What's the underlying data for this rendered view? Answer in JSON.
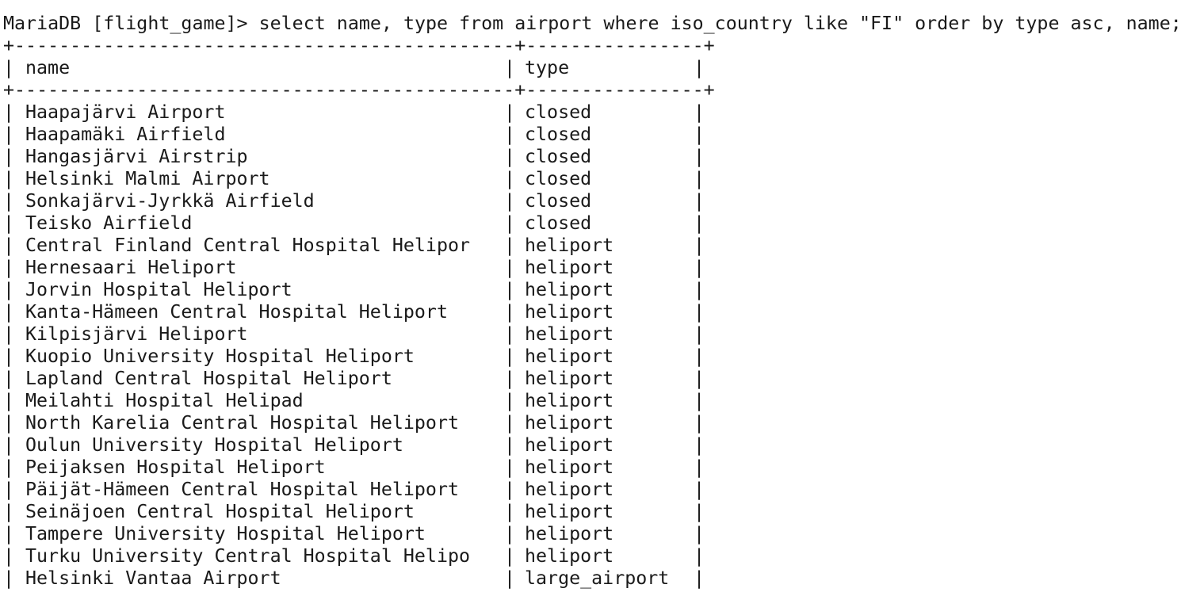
{
  "prompt": "MariaDB [flight_game]>",
  "query": "select name, type from airport where iso_country like \"FI\" order by type asc, name;",
  "border_line": "+---------------------------------------------+----------------+",
  "columns": [
    "name",
    "type"
  ],
  "rows": [
    {
      "name": "Haapajärvi Airport",
      "type": "closed"
    },
    {
      "name": "Haapamäki Airfield",
      "type": "closed"
    },
    {
      "name": "Hangasjärvi Airstrip",
      "type": "closed"
    },
    {
      "name": "Helsinki Malmi Airport",
      "type": "closed"
    },
    {
      "name": "Sonkajärvi-Jyrkkä Airfield",
      "type": "closed"
    },
    {
      "name": "Teisko Airfield",
      "type": "closed"
    },
    {
      "name": "Central Finland Central Hospital Helipor",
      "type": "heliport"
    },
    {
      "name": "Hernesaari Heliport",
      "type": "heliport"
    },
    {
      "name": "Jorvin Hospital Heliport",
      "type": "heliport"
    },
    {
      "name": "Kanta-Hämeen Central Hospital Heliport",
      "type": "heliport"
    },
    {
      "name": "Kilpisjärvi Heliport",
      "type": "heliport"
    },
    {
      "name": "Kuopio University Hospital Heliport",
      "type": "heliport"
    },
    {
      "name": "Lapland Central Hospital Heliport",
      "type": "heliport"
    },
    {
      "name": "Meilahti Hospital Helipad",
      "type": "heliport"
    },
    {
      "name": "North Karelia Central Hospital Heliport",
      "type": "heliport"
    },
    {
      "name": "Oulun University Hospital Heliport",
      "type": "heliport"
    },
    {
      "name": "Peijaksen Hospital Heliport",
      "type": "heliport"
    },
    {
      "name": "Päijät-Hämeen Central Hospital Heliport",
      "type": "heliport"
    },
    {
      "name": "Seinäjoen Central Hospital Heliport",
      "type": "heliport"
    },
    {
      "name": "Tampere University Hospital Heliport",
      "type": "heliport"
    },
    {
      "name": "Turku University Central Hospital Helipo",
      "type": "heliport"
    },
    {
      "name": "Helsinki Vantaa Airport",
      "type": "large_airport"
    }
  ],
  "colors": {
    "background": "#ffffff",
    "text": "#1a1a1a"
  }
}
